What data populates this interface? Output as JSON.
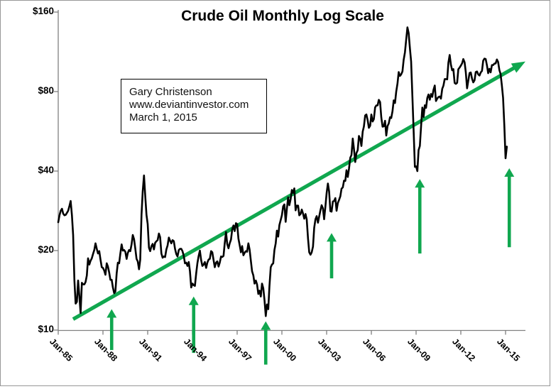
{
  "title": "Crude Oil Monthly Log Scale",
  "annotation": {
    "line1": "Gary Christenson",
    "line2": "www.deviantinvestor.com",
    "line3": "March 1, 2015"
  },
  "colors": {
    "series": "#000000",
    "trend_green": "#10A74F",
    "axis": "#808080",
    "frame_border": "#979797",
    "text": "#000000"
  },
  "chart_data": {
    "type": "line",
    "title": "Crude Oil Monthly Log Scale",
    "x_unit": "month",
    "x_start": "Jan-1985",
    "x_end": "Feb-2015",
    "x_tick_labels": [
      "Jan-85",
      "Jan-88",
      "Jan-91",
      "Jan-94",
      "Jan-97",
      "Jan-00",
      "Jan-03",
      "Jan-06",
      "Jan-09",
      "Jan-12",
      "Jan-15"
    ],
    "x_tick_interval_months": 36,
    "y_scale": "log2",
    "y_tick_labels": [
      "$160",
      "$80",
      "$40",
      "$20",
      "$10"
    ],
    "y_tick_values": [
      160,
      80,
      40,
      20,
      10
    ],
    "ylim": [
      10,
      160
    ],
    "grid": false,
    "legend": "none",
    "series": [
      {
        "name": "Crude Oil ($/barrel, monthly)",
        "values": [
          25.6,
          27.2,
          28.3,
          28.8,
          27.6,
          27.2,
          27.3,
          27.8,
          28.3,
          29.5,
          30.8,
          27.2,
          22.9,
          15.4,
          12.6,
          12.8,
          15.4,
          13.4,
          11.6,
          15.1,
          14.9,
          14.9,
          15.2,
          16.1,
          18.7,
          17.7,
          18.3,
          18.7,
          19.4,
          20.1,
          21.3,
          20.3,
          19.5,
          19.9,
          18.5,
          17.3,
          17.2,
          16.8,
          16.2,
          17.9,
          17.4,
          16.5,
          15.5,
          15.5,
          14.5,
          13.8,
          14.0,
          16.4,
          18.0,
          17.9,
          19.5,
          21.1,
          20.0,
          20.1,
          19.8,
          18.6,
          19.6,
          20.1,
          19.9,
          21.1,
          22.9,
          22.1,
          20.4,
          18.6,
          18.2,
          17.0,
          18.5,
          27.3,
          33.5,
          38.5,
          32.3,
          27.3,
          25.2,
          20.5,
          19.9,
          20.8,
          21.2,
          20.2,
          21.4,
          21.7,
          21.9,
          23.2,
          22.5,
          19.5,
          18.8,
          19.0,
          18.9,
          20.2,
          20.9,
          22.4,
          21.8,
          21.3,
          21.9,
          21.7,
          20.3,
          19.4,
          19.0,
          20.1,
          20.3,
          20.3,
          19.9,
          19.1,
          17.9,
          18.0,
          17.5,
          18.1,
          16.7,
          14.5,
          15.0,
          14.8,
          14.7,
          16.4,
          17.9,
          19.1,
          20.0,
          18.4,
          17.5,
          17.7,
          18.1,
          17.2,
          18.0,
          18.5,
          18.6,
          19.9,
          19.7,
          18.4,
          17.3,
          18.0,
          18.2,
          17.4,
          18.0,
          19.0,
          18.9,
          19.1,
          21.3,
          23.5,
          21.2,
          20.4,
          21.3,
          22.0,
          24.0,
          24.9,
          23.7,
          25.4,
          25.2,
          22.2,
          21.0,
          19.7,
          20.8,
          19.2,
          19.6,
          19.9,
          19.8,
          21.3,
          20.2,
          18.3,
          16.7,
          16.1,
          15.0,
          15.4,
          14.9,
          13.7,
          14.1,
          13.4,
          15.0,
          14.4,
          13.0,
          11.3,
          12.5,
          12.0,
          14.7,
          17.3,
          17.7,
          17.9,
          20.1,
          21.3,
          23.8,
          22.6,
          25.0,
          26.1,
          27.2,
          29.4,
          29.9,
          25.7,
          28.8,
          31.8,
          29.7,
          31.3,
          33.9,
          33.1,
          34.4,
          28.4,
          29.6,
          29.6,
          27.2,
          27.5,
          28.6,
          27.6,
          26.4,
          27.5,
          26.2,
          22.2,
          19.7,
          19.3,
          19.7,
          20.7,
          24.4,
          26.3,
          27.0,
          25.5,
          26.9,
          28.4,
          29.7,
          28.9,
          26.3,
          29.4,
          33.0,
          35.9,
          33.5,
          28.2,
          28.1,
          30.7,
          30.8,
          31.6,
          28.3,
          30.3,
          31.1,
          32.1,
          34.3,
          34.7,
          36.8,
          36.7,
          40.3,
          38.0,
          40.8,
          44.9,
          46.0,
          53.1,
          48.5,
          43.3,
          46.8,
          48.0,
          54.3,
          53.0,
          49.8,
          56.4,
          59.0,
          65.0,
          65.5,
          62.3,
          58.3,
          59.4,
          65.5,
          61.6,
          62.9,
          69.7,
          70.9,
          70.9,
          74.4,
          73.0,
          63.9,
          58.9,
          59.1,
          62.0,
          54.5,
          59.3,
          60.6,
          64.0,
          63.5,
          67.5,
          74.1,
          72.4,
          79.9,
          85.8,
          94.8,
          91.7,
          92.9,
          95.4,
          105.5,
          112.6,
          125.4,
          140.0,
          133.4,
          116.7,
          104.1,
          76.6,
          57.3,
          41.5,
          41.7,
          40.0,
          48.0,
          49.8,
          59.0,
          69.6,
          64.1,
          71.0,
          69.4,
          75.7,
          78.0,
          74.5,
          78.3,
          76.4,
          81.2,
          84.3,
          73.7,
          75.3,
          76.3,
          76.6,
          75.2,
          81.9,
          84.2,
          89.2,
          89.2,
          89.0,
          102.9,
          110.0,
          101.3,
          96.3,
          97.3,
          86.3,
          85.6,
          86.4,
          97.2,
          98.6,
          100.3,
          102.3,
          106.2,
          103.3,
          94.7,
          82.3,
          87.9,
          94.1,
          94.5,
          89.5,
          86.7,
          88.2,
          94.8,
          95.3,
          92.9,
          92.0,
          94.5,
          95.8,
          104.7,
          106.6,
          106.3,
          100.5,
          93.9,
          97.6,
          94.6,
          100.8,
          100.8,
          102.1,
          102.2,
          105.8,
          103.6,
          96.5,
          93.2,
          84.4,
          75.8,
          59.3,
          44.7,
          49.5
        ]
      }
    ],
    "trend_arrow": {
      "description": "long-term rising green support/trend arrow",
      "start_month_index": 12,
      "start_price": 11.0,
      "end_month_index": 376,
      "end_price": 104.0
    },
    "event_arrows": [
      {
        "approx_date": "Aug-1988",
        "month_index": 43,
        "head_price": 12.0,
        "tail_price": 8.4
      },
      {
        "approx_date": "Jan-1994",
        "month_index": 109,
        "head_price": 13.4,
        "tail_price": 8.2
      },
      {
        "approx_date": "Dec-1998",
        "month_index": 167,
        "head_price": 10.8,
        "tail_price": 7.4
      },
      {
        "approx_date": "May-2003",
        "month_index": 220,
        "head_price": 23.3,
        "tail_price": 15.7
      },
      {
        "approx_date": "Apr-2009",
        "month_index": 291,
        "head_price": 37.3,
        "tail_price": 19.5
      },
      {
        "approx_date": "Apr-2015",
        "month_index": 363,
        "head_price": 41.0,
        "tail_price": 20.6
      }
    ]
  }
}
